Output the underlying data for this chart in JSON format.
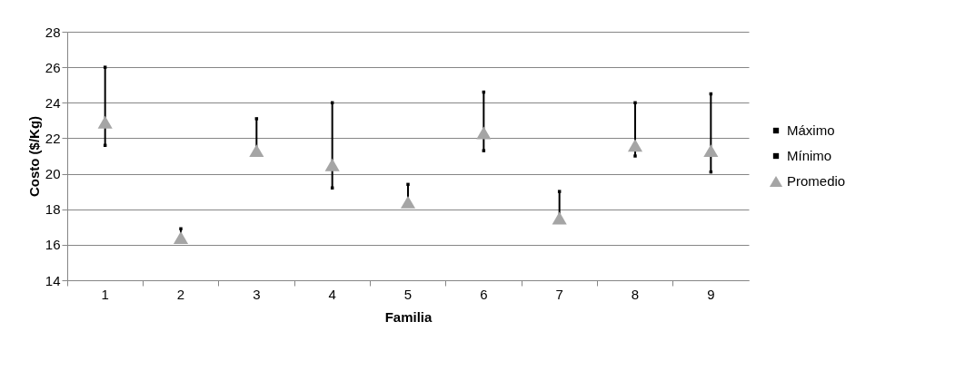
{
  "chart_data": {
    "type": "scatter",
    "xlabel": "Familia",
    "ylabel": "Costo ($/Kg)",
    "categories": [
      "1",
      "2",
      "3",
      "4",
      "5",
      "6",
      "7",
      "8",
      "9"
    ],
    "series": [
      {
        "name": "Máximo",
        "color": "#000000",
        "marker": "square",
        "values": [
          26.0,
          16.9,
          23.1,
          24.0,
          19.4,
          24.6,
          19.0,
          24.0,
          24.5
        ]
      },
      {
        "name": "Mínimo",
        "color": "#000000",
        "marker": "square",
        "values": [
          21.6,
          null,
          null,
          19.2,
          null,
          21.3,
          null,
          21.0,
          20.1
        ]
      },
      {
        "name": "Promedio",
        "color": "#a5a5a5",
        "marker": "triangle",
        "values": [
          22.9,
          16.4,
          21.3,
          20.5,
          18.4,
          22.3,
          17.5,
          21.6,
          21.3
        ]
      }
    ],
    "ylim": [
      14,
      28
    ],
    "yticks": [
      14,
      16,
      18,
      20,
      22,
      24,
      26,
      28
    ],
    "grid": "y",
    "legend": "right"
  }
}
